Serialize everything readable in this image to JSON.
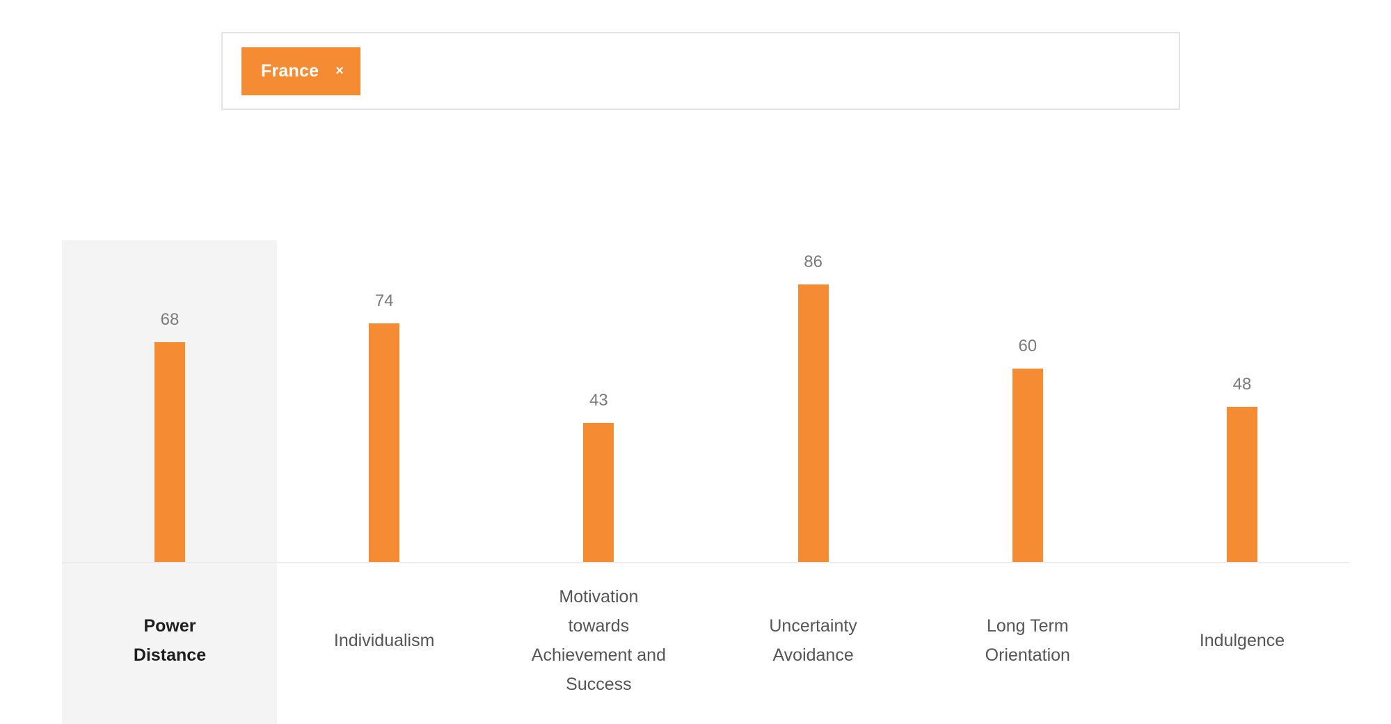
{
  "filter": {
    "selected_tags": [
      {
        "label": "France",
        "close_icon": "×"
      }
    ]
  },
  "colors": {
    "bar": "#F58B33",
    "highlight_panel": "#F4F4F4",
    "tag": "#F58B33"
  },
  "chart_data": {
    "type": "bar",
    "title": "",
    "xlabel": "",
    "ylabel": "",
    "ylim": [
      0,
      100
    ],
    "grid": false,
    "categories": [
      {
        "lines": [
          "Power",
          "Distance"
        ],
        "label": "Power Distance"
      },
      {
        "lines": [
          "Individualism"
        ],
        "label": "Individualism"
      },
      {
        "lines": [
          "Motivation",
          "towards",
          "Achievement and",
          "Success"
        ],
        "label": "Motivation towards Achievement and Success"
      },
      {
        "lines": [
          "Uncertainty",
          "Avoidance"
        ],
        "label": "Uncertainty Avoidance"
      },
      {
        "lines": [
          "Long Term",
          "Orientation"
        ],
        "label": "Long Term Orientation"
      },
      {
        "lines": [
          "Indulgence"
        ],
        "label": "Indulgence"
      }
    ],
    "series": [
      {
        "name": "France",
        "values": [
          68,
          74,
          43,
          86,
          60,
          48
        ]
      }
    ],
    "data_labels": [
      "68",
      "74",
      "43",
      "86",
      "60",
      "48"
    ],
    "highlighted_category": 0
  }
}
